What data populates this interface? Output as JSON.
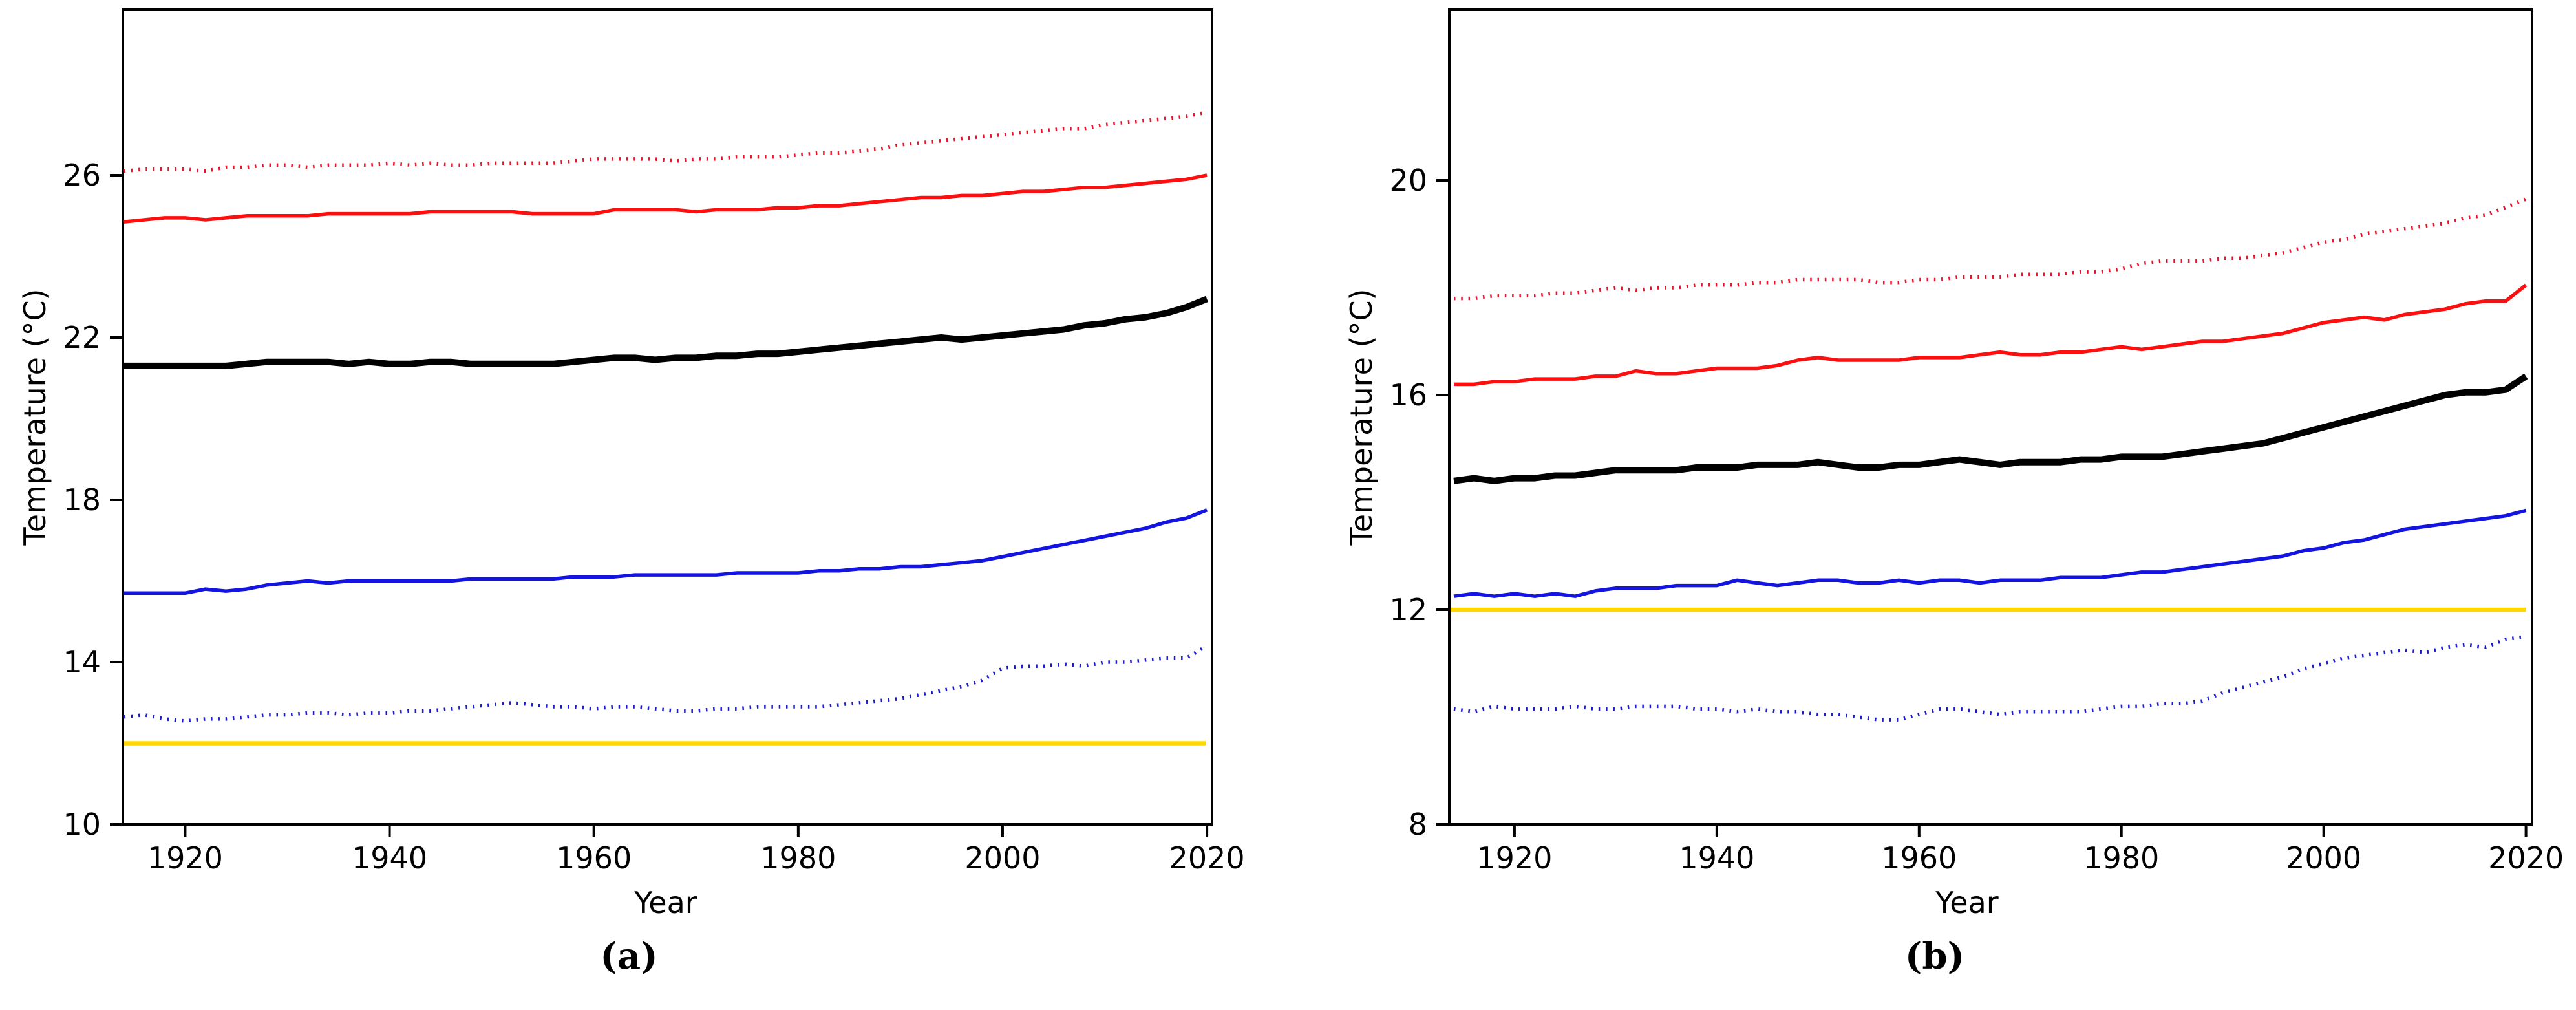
{
  "figure": {
    "background": "#ffffff",
    "caption_a": "(a)",
    "caption_b": "(b)"
  },
  "colors": {
    "red_dotted": "#e8142d",
    "red_solid": "#fb0f0f",
    "black": "#000000",
    "blue_solid": "#1414e0",
    "blue_dotted": "#1c1ccd",
    "reference_yellow": "#ffd700",
    "axis": "#000000"
  },
  "chart_data": [
    {
      "id": "a",
      "type": "line",
      "caption": "(a)",
      "title": "",
      "xlabel": "Year",
      "ylabel": "Temperature (°C)",
      "legend": "none",
      "grid": false,
      "xlim": [
        1913.9,
        2020.5
      ],
      "ylim": [
        10,
        30.08
      ],
      "xticks": [
        1920,
        1940,
        1960,
        1980,
        2000,
        2020
      ],
      "yticks": [
        10,
        14,
        18,
        22,
        26
      ],
      "x": [
        1914,
        1916,
        1918,
        1920,
        1922,
        1924,
        1926,
        1928,
        1930,
        1932,
        1934,
        1936,
        1938,
        1940,
        1942,
        1944,
        1946,
        1948,
        1950,
        1952,
        1954,
        1956,
        1958,
        1960,
        1962,
        1964,
        1966,
        1968,
        1970,
        1972,
        1974,
        1976,
        1978,
        1980,
        1982,
        1984,
        1986,
        1988,
        1990,
        1992,
        1994,
        1996,
        1998,
        2000,
        2002,
        2004,
        2006,
        2008,
        2010,
        2012,
        2014,
        2016,
        2018,
        2020
      ],
      "reference_line": {
        "name": "baseline-12C",
        "value": 12,
        "color": "#ffd700",
        "width": 6.5
      },
      "series": [
        {
          "name": "upper-dotted-red",
          "style": "dotted",
          "color": "#e8142d",
          "width": 5.5,
          "values": [
            26.1,
            26.15,
            26.15,
            26.15,
            26.1,
            26.2,
            26.2,
            26.25,
            26.25,
            26.2,
            26.25,
            26.25,
            26.25,
            26.3,
            26.25,
            26.3,
            26.25,
            26.25,
            26.3,
            26.3,
            26.3,
            26.3,
            26.35,
            26.4,
            26.4,
            26.4,
            26.4,
            26.35,
            26.4,
            26.4,
            26.45,
            26.45,
            26.45,
            26.5,
            26.55,
            26.55,
            26.6,
            26.65,
            26.75,
            26.8,
            26.85,
            26.9,
            26.95,
            27.0,
            27.05,
            27.1,
            27.15,
            27.15,
            27.25,
            27.3,
            27.35,
            27.4,
            27.45,
            27.55
          ]
        },
        {
          "name": "upper-solid-red",
          "style": "solid",
          "color": "#fb0f0f",
          "width": 5.5,
          "values": [
            24.85,
            24.9,
            24.95,
            24.95,
            24.9,
            24.95,
            25.0,
            25.0,
            25.0,
            25.0,
            25.05,
            25.05,
            25.05,
            25.05,
            25.05,
            25.1,
            25.1,
            25.1,
            25.1,
            25.1,
            25.05,
            25.05,
            25.05,
            25.05,
            25.15,
            25.15,
            25.15,
            25.15,
            25.1,
            25.15,
            25.15,
            25.15,
            25.2,
            25.2,
            25.25,
            25.25,
            25.3,
            25.35,
            25.4,
            25.45,
            25.45,
            25.5,
            25.5,
            25.55,
            25.6,
            25.6,
            25.65,
            25.7,
            25.7,
            25.75,
            25.8,
            25.85,
            25.9,
            26.0
          ]
        },
        {
          "name": "mean-solid-black",
          "style": "solid",
          "color": "#000000",
          "width": 10,
          "values": [
            21.3,
            21.3,
            21.3,
            21.3,
            21.3,
            21.3,
            21.35,
            21.4,
            21.4,
            21.4,
            21.4,
            21.35,
            21.4,
            21.35,
            21.35,
            21.4,
            21.4,
            21.35,
            21.35,
            21.35,
            21.35,
            21.35,
            21.4,
            21.45,
            21.5,
            21.5,
            21.45,
            21.5,
            21.5,
            21.55,
            21.55,
            21.6,
            21.6,
            21.65,
            21.7,
            21.75,
            21.8,
            21.85,
            21.9,
            21.95,
            22.0,
            21.95,
            22.0,
            22.05,
            22.1,
            22.15,
            22.2,
            22.3,
            22.35,
            22.45,
            22.5,
            22.6,
            22.75,
            22.95
          ]
        },
        {
          "name": "lower-solid-blue",
          "style": "solid",
          "color": "#1414e0",
          "width": 5.5,
          "values": [
            15.7,
            15.7,
            15.7,
            15.7,
            15.8,
            15.75,
            15.8,
            15.9,
            15.95,
            16.0,
            15.95,
            16.0,
            16.0,
            16.0,
            16.0,
            16.0,
            16.0,
            16.05,
            16.05,
            16.05,
            16.05,
            16.05,
            16.1,
            16.1,
            16.1,
            16.15,
            16.15,
            16.15,
            16.15,
            16.15,
            16.2,
            16.2,
            16.2,
            16.2,
            16.25,
            16.25,
            16.3,
            16.3,
            16.35,
            16.35,
            16.4,
            16.45,
            16.5,
            16.6,
            16.7,
            16.8,
            16.9,
            17.0,
            17.1,
            17.2,
            17.3,
            17.45,
            17.55,
            17.75
          ]
        },
        {
          "name": "lower-dotted-blue",
          "style": "dotted",
          "color": "#1c1ccd",
          "width": 5.5,
          "values": [
            12.65,
            12.7,
            12.6,
            12.55,
            12.6,
            12.6,
            12.65,
            12.7,
            12.7,
            12.75,
            12.75,
            12.7,
            12.75,
            12.75,
            12.8,
            12.8,
            12.85,
            12.9,
            12.95,
            13.0,
            12.95,
            12.9,
            12.9,
            12.85,
            12.9,
            12.9,
            12.85,
            12.8,
            12.8,
            12.85,
            12.85,
            12.9,
            12.9,
            12.9,
            12.9,
            12.95,
            13.0,
            13.05,
            13.1,
            13.2,
            13.3,
            13.4,
            13.55,
            13.85,
            13.9,
            13.9,
            13.95,
            13.9,
            14.0,
            14.0,
            14.05,
            14.1,
            14.1,
            14.4
          ]
        }
      ]
    },
    {
      "id": "b",
      "type": "line",
      "caption": "(b)",
      "title": "",
      "xlabel": "Year",
      "ylabel": "Temperature (°C)",
      "legend": "none",
      "grid": false,
      "xlim": [
        1913.55,
        2020.6
      ],
      "ylim": [
        8,
        23.18
      ],
      "xticks": [
        1920,
        1940,
        1960,
        1980,
        2000,
        2020
      ],
      "yticks": [
        8,
        12,
        16,
        20
      ],
      "x": [
        1914,
        1916,
        1918,
        1920,
        1922,
        1924,
        1926,
        1928,
        1930,
        1932,
        1934,
        1936,
        1938,
        1940,
        1942,
        1944,
        1946,
        1948,
        1950,
        1952,
        1954,
        1956,
        1958,
        1960,
        1962,
        1964,
        1966,
        1968,
        1970,
        1972,
        1974,
        1976,
        1978,
        1980,
        1982,
        1984,
        1986,
        1988,
        1990,
        1992,
        1994,
        1996,
        1998,
        2000,
        2002,
        2004,
        2006,
        2008,
        2010,
        2012,
        2014,
        2016,
        2018,
        2020
      ],
      "reference_line": {
        "name": "baseline-12C",
        "value": 12,
        "color": "#ffd700",
        "width": 6.5
      },
      "series": [
        {
          "name": "upper-dotted-red",
          "style": "dotted",
          "color": "#e8142d",
          "width": 5.5,
          "values": [
            17.8,
            17.8,
            17.85,
            17.85,
            17.85,
            17.9,
            17.9,
            17.95,
            18.0,
            17.95,
            18.0,
            18.0,
            18.05,
            18.05,
            18.05,
            18.1,
            18.1,
            18.15,
            18.15,
            18.15,
            18.15,
            18.1,
            18.1,
            18.15,
            18.15,
            18.2,
            18.2,
            18.2,
            18.25,
            18.25,
            18.25,
            18.3,
            18.3,
            18.35,
            18.45,
            18.5,
            18.5,
            18.5,
            18.55,
            18.55,
            18.6,
            18.65,
            18.75,
            18.85,
            18.9,
            19.0,
            19.05,
            19.1,
            19.15,
            19.2,
            19.3,
            19.35,
            19.5,
            19.65
          ]
        },
        {
          "name": "upper-solid-red",
          "style": "solid",
          "color": "#fb0f0f",
          "width": 5.5,
          "values": [
            16.2,
            16.2,
            16.25,
            16.25,
            16.3,
            16.3,
            16.3,
            16.35,
            16.35,
            16.45,
            16.4,
            16.4,
            16.45,
            16.5,
            16.5,
            16.5,
            16.55,
            16.65,
            16.7,
            16.65,
            16.65,
            16.65,
            16.65,
            16.7,
            16.7,
            16.7,
            16.75,
            16.8,
            16.75,
            16.75,
            16.8,
            16.8,
            16.85,
            16.9,
            16.85,
            16.9,
            16.95,
            17.0,
            17.0,
            17.05,
            17.1,
            17.15,
            17.25,
            17.35,
            17.4,
            17.45,
            17.4,
            17.5,
            17.55,
            17.6,
            17.7,
            17.75,
            17.75,
            18.05
          ]
        },
        {
          "name": "mean-solid-black",
          "style": "solid",
          "color": "#000000",
          "width": 10,
          "values": [
            14.4,
            14.45,
            14.4,
            14.45,
            14.45,
            14.5,
            14.5,
            14.55,
            14.6,
            14.6,
            14.6,
            14.6,
            14.65,
            14.65,
            14.65,
            14.7,
            14.7,
            14.7,
            14.75,
            14.7,
            14.65,
            14.65,
            14.7,
            14.7,
            14.75,
            14.8,
            14.75,
            14.7,
            14.75,
            14.75,
            14.75,
            14.8,
            14.8,
            14.85,
            14.85,
            14.85,
            14.9,
            14.95,
            15.0,
            15.05,
            15.1,
            15.2,
            15.3,
            15.4,
            15.5,
            15.6,
            15.7,
            15.8,
            15.9,
            16.0,
            16.05,
            16.05,
            16.1,
            16.35
          ]
        },
        {
          "name": "lower-solid-blue",
          "style": "solid",
          "color": "#1414e0",
          "width": 5.5,
          "values": [
            12.25,
            12.3,
            12.25,
            12.3,
            12.25,
            12.3,
            12.25,
            12.35,
            12.4,
            12.4,
            12.4,
            12.45,
            12.45,
            12.45,
            12.55,
            12.5,
            12.45,
            12.5,
            12.55,
            12.55,
            12.5,
            12.5,
            12.55,
            12.5,
            12.55,
            12.55,
            12.5,
            12.55,
            12.55,
            12.55,
            12.6,
            12.6,
            12.6,
            12.65,
            12.7,
            12.7,
            12.75,
            12.8,
            12.85,
            12.9,
            12.95,
            13.0,
            13.1,
            13.15,
            13.25,
            13.3,
            13.4,
            13.5,
            13.55,
            13.6,
            13.65,
            13.7,
            13.75,
            13.85
          ]
        },
        {
          "name": "lower-dotted-blue",
          "style": "dotted",
          "color": "#1c1ccd",
          "width": 5.5,
          "values": [
            10.15,
            10.1,
            10.2,
            10.15,
            10.15,
            10.15,
            10.2,
            10.15,
            10.15,
            10.2,
            10.2,
            10.2,
            10.15,
            10.15,
            10.1,
            10.15,
            10.1,
            10.1,
            10.05,
            10.05,
            10.0,
            9.95,
            9.95,
            10.05,
            10.15,
            10.15,
            10.1,
            10.05,
            10.1,
            10.1,
            10.1,
            10.1,
            10.15,
            10.2,
            10.2,
            10.25,
            10.25,
            10.3,
            10.45,
            10.55,
            10.65,
            10.75,
            10.9,
            11.0,
            11.1,
            11.15,
            11.2,
            11.25,
            11.2,
            11.3,
            11.35,
            11.3,
            11.45,
            11.5
          ]
        }
      ]
    }
  ]
}
